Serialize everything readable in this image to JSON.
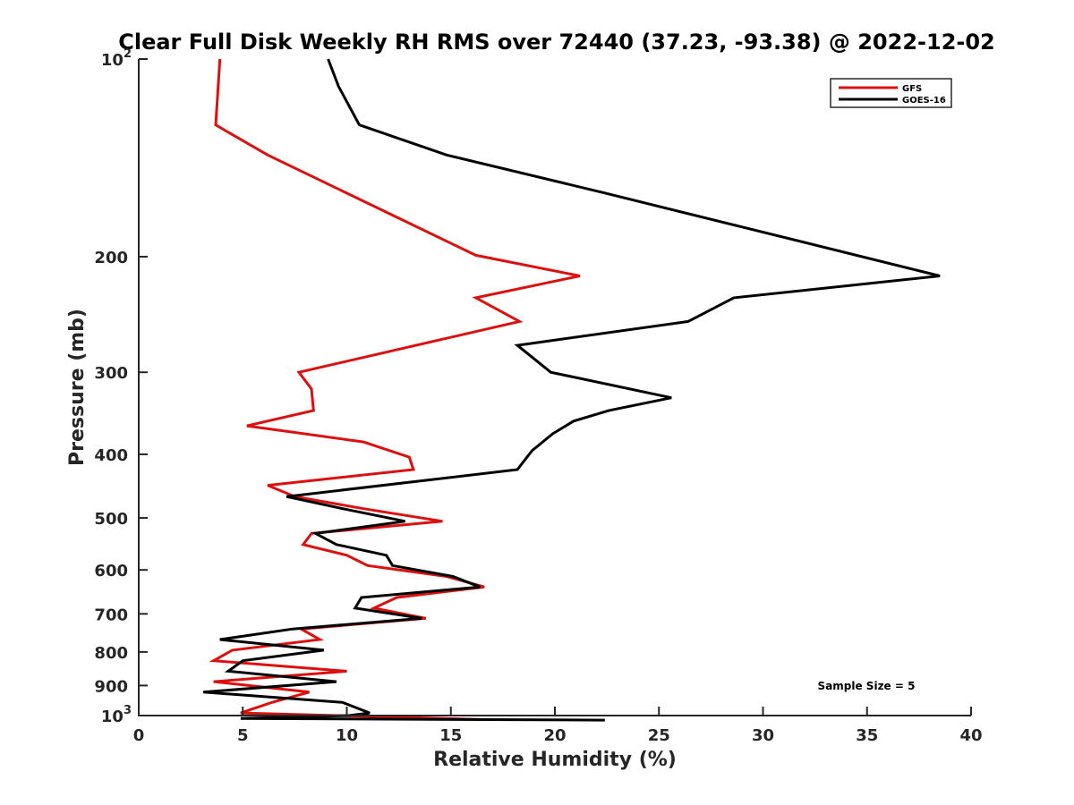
{
  "chart_data": {
    "type": "line",
    "title": "Clear Full Disk Weekly RH RMS over 72440 (37.23, -93.38) @ 2022-12-02",
    "xlabel": "Relative Humidity (%)",
    "ylabel": "Pressure (mb)",
    "xlim": [
      0,
      40
    ],
    "ylim": [
      100,
      1000
    ],
    "yscale": "log",
    "y_reversed": true,
    "x_ticks": [
      "0",
      "5",
      "10",
      "15",
      "20",
      "25",
      "30",
      "35",
      "40"
    ],
    "y_ticks": [
      {
        "value": 100,
        "base": "10",
        "exp": "2"
      },
      {
        "value": 200,
        "base": "200",
        "exp": ""
      },
      {
        "value": 300,
        "base": "300",
        "exp": ""
      },
      {
        "value": 400,
        "base": "400",
        "exp": ""
      },
      {
        "value": 500,
        "base": "500",
        "exp": ""
      },
      {
        "value": 600,
        "base": "600",
        "exp": ""
      },
      {
        "value": 700,
        "base": "700",
        "exp": ""
      },
      {
        "value": 800,
        "base": "800",
        "exp": ""
      },
      {
        "value": 900,
        "base": "900",
        "exp": ""
      },
      {
        "value": 1000,
        "base": "10",
        "exp": "3"
      }
    ],
    "legend_position": "top-right",
    "annotation": "Sample Size = 5",
    "series": [
      {
        "name": "GFS",
        "color": "#dd1010",
        "points": [
          [
            3.9,
            100
          ],
          [
            3.7,
            126
          ],
          [
            6.2,
            140
          ],
          [
            16.2,
            199
          ],
          [
            21.2,
            214
          ],
          [
            16.2,
            231
          ],
          [
            18.3,
            251
          ],
          [
            7.7,
            300
          ],
          [
            8.3,
            318
          ],
          [
            8.4,
            343
          ],
          [
            5.2,
            362
          ],
          [
            10.8,
            383
          ],
          [
            13.0,
            404
          ],
          [
            13.2,
            422
          ],
          [
            6.2,
            446
          ],
          [
            7.5,
            464
          ],
          [
            10.8,
            484
          ],
          [
            14.6,
            506
          ],
          [
            8.3,
            528
          ],
          [
            7.9,
            549
          ],
          [
            10.0,
            570
          ],
          [
            11.0,
            591
          ],
          [
            14.8,
            614
          ],
          [
            16.6,
            637
          ],
          [
            12.4,
            661
          ],
          [
            11.3,
            686
          ],
          [
            13.8,
            711
          ],
          [
            7.8,
            738
          ],
          [
            8.7,
            766
          ],
          [
            4.5,
            795
          ],
          [
            3.6,
            825
          ],
          [
            10.0,
            856
          ],
          [
            3.6,
            888
          ],
          [
            8.2,
            921
          ],
          [
            6.4,
            955
          ],
          [
            4.9,
            991
          ],
          [
            16.4,
            1014
          ]
        ]
      },
      {
        "name": "GOES-16",
        "color": "#000000",
        "points": [
          [
            9.1,
            100
          ],
          [
            9.6,
            110
          ],
          [
            10.6,
            126
          ],
          [
            14.8,
            140
          ],
          [
            22.4,
            160
          ],
          [
            38.5,
            214
          ],
          [
            28.6,
            231
          ],
          [
            26.4,
            251
          ],
          [
            18.2,
            273
          ],
          [
            19.8,
            300
          ],
          [
            25.6,
            328
          ],
          [
            22.6,
            343
          ],
          [
            20.9,
            356
          ],
          [
            19.9,
            372
          ],
          [
            18.9,
            395
          ],
          [
            18.2,
            422
          ],
          [
            7.1,
            464
          ],
          [
            9.8,
            484
          ],
          [
            12.8,
            506
          ],
          [
            8.5,
            528
          ],
          [
            9.5,
            549
          ],
          [
            11.9,
            570
          ],
          [
            12.2,
            591
          ],
          [
            15.1,
            614
          ],
          [
            16.4,
            637
          ],
          [
            10.7,
            661
          ],
          [
            10.4,
            686
          ],
          [
            13.6,
            711
          ],
          [
            7.4,
            738
          ],
          [
            3.9,
            766
          ],
          [
            8.9,
            795
          ],
          [
            5.0,
            825
          ],
          [
            4.3,
            856
          ],
          [
            9.5,
            888
          ],
          [
            3.1,
            921
          ],
          [
            9.8,
            955
          ],
          [
            11.1,
            991
          ],
          [
            10.1,
            1000
          ],
          [
            4.9,
            1010
          ],
          [
            22.4,
            1016
          ]
        ]
      }
    ]
  }
}
